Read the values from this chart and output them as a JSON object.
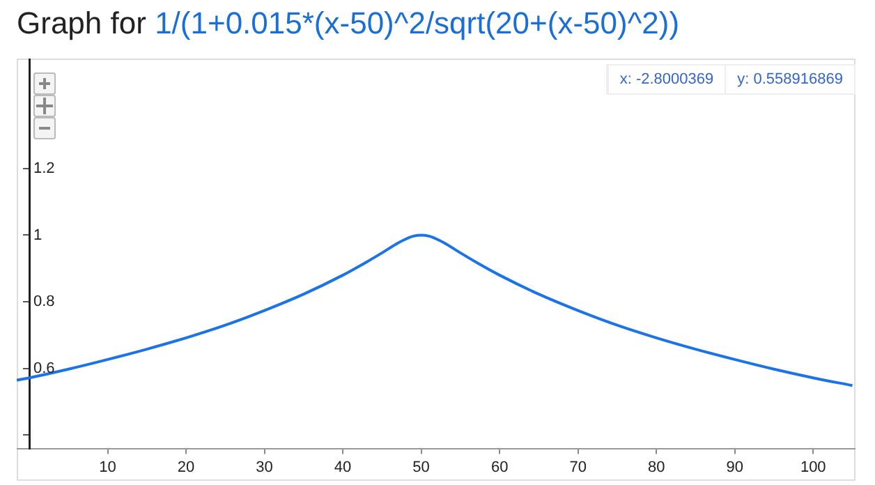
{
  "chart_data": {
    "type": "line",
    "title": "Graph for",
    "subtitle": "1/(1+0.015*(x-50)^2/sqrt(20+(x-50)^2))",
    "annotations": [
      "x: -2.8000369",
      "y: 0.558916869"
    ],
    "x": [
      -1.6,
      0,
      5,
      10,
      15,
      20,
      25,
      30,
      35,
      40,
      43,
      45,
      47,
      48,
      49,
      50,
      51,
      52,
      53,
      55,
      57,
      60,
      65,
      70,
      75,
      80,
      85,
      90,
      95,
      100,
      105
    ],
    "series": [
      {
        "color": "#1a73e8",
        "values": [
          0.565,
          0.572,
          0.598,
          0.627,
          0.658,
          0.692,
          0.73,
          0.774,
          0.823,
          0.88,
          0.919,
          0.947,
          0.976,
          0.988,
          0.997,
          1.0,
          0.997,
          0.988,
          0.976,
          0.947,
          0.919,
          0.88,
          0.823,
          0.774,
          0.73,
          0.692,
          0.658,
          0.627,
          0.598,
          0.572,
          0.549
        ]
      }
    ],
    "xlim": [
      -1.6,
      105.4
    ],
    "xticks": [
      10,
      20,
      30,
      40,
      50,
      60,
      70,
      80,
      90,
      100
    ],
    "ylim": [
      0.36,
      1.53
    ],
    "yticks": [
      {
        "value": 0.4,
        "label": null
      },
      0.6,
      0.8,
      1,
      1.2
    ],
    "grid": false,
    "legend": false,
    "marker": "none",
    "line_style": "solid"
  }
}
